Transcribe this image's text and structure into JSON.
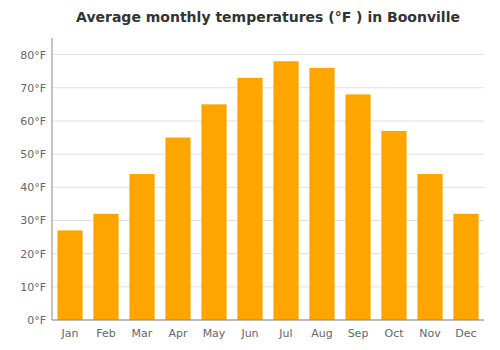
{
  "chart_data": {
    "type": "bar",
    "title": "Average monthly temperatures (°F ) in Boonville",
    "categories": [
      "Jan",
      "Feb",
      "Mar",
      "Apr",
      "May",
      "Jun",
      "Jul",
      "Aug",
      "Sep",
      "Oct",
      "Nov",
      "Dec"
    ],
    "values": [
      27,
      32,
      44,
      55,
      65,
      73,
      78,
      76,
      68,
      57,
      44,
      32
    ],
    "color": "#FFA500",
    "ylim": [
      0,
      85
    ],
    "yticks": [
      {
        "value": 0,
        "label": "0°F"
      },
      {
        "value": 10,
        "label": "10°F"
      },
      {
        "value": 20,
        "label": "20°F"
      },
      {
        "value": 30,
        "label": "30°F"
      },
      {
        "value": 40,
        "label": "40°F"
      },
      {
        "value": 50,
        "label": "50°F"
      },
      {
        "value": 60,
        "label": "60°F"
      },
      {
        "value": 70,
        "label": "70°F"
      },
      {
        "value": 80,
        "label": "80°F"
      }
    ],
    "grid": true
  }
}
